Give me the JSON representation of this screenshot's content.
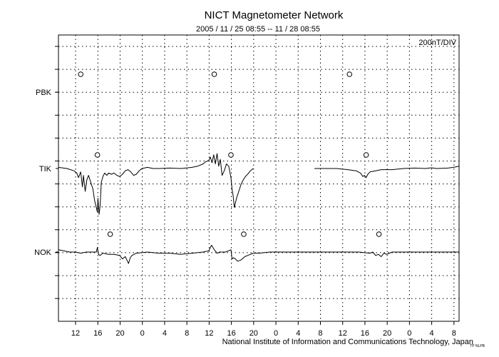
{
  "chart_data": {
    "type": "line",
    "title": "NICT Magnetometer Network",
    "subtitle": "2005 / 11 / 25   08:55 -- 11 / 28   08:55",
    "scale_label": "200nT/DIV",
    "credit": "National Institute of Information and Communications Technology, Japan",
    "small_mark": "TP NLPB",
    "grid": true,
    "x_range_hours": [
      0,
      72
    ],
    "x_tick_labels": [
      "12",
      "16",
      "20",
      "0",
      "4",
      "8",
      "12",
      "16",
      "20",
      "0",
      "4",
      "8",
      "12",
      "16",
      "20",
      "0",
      "4",
      "8"
    ],
    "x_tick_hours": [
      3.08,
      7.08,
      11.08,
      15.08,
      19.08,
      23.08,
      27.08,
      31.08,
      35.08,
      39.08,
      43.08,
      47.08,
      51.08,
      55.08,
      59.08,
      63.08,
      67.08,
      71.08
    ],
    "stations": [
      {
        "name": "PBK",
        "circle_hours": [
          4.0,
          28.0,
          52.3
        ],
        "x": [],
        "y": []
      },
      {
        "name": "TIK",
        "circle_hours": [
          7.0,
          31.0,
          55.3
        ],
        "x": [
          0,
          1.5,
          2.8,
          3.3,
          3.6,
          4.0,
          4.3,
          4.5,
          4.8,
          5.1,
          5.4,
          5.8,
          6.2,
          6.5,
          6.8,
          7.0,
          7.1,
          7.3,
          7.5,
          7.7,
          8.0,
          8.3,
          8.7,
          9.0,
          9.5,
          10.0,
          10.5,
          11.0,
          11.5,
          12.0,
          12.5,
          13.0,
          13.5,
          14.0,
          14.5,
          15.0,
          16.0,
          17.0,
          18.0,
          20.0,
          22.0,
          24.0,
          25.0,
          26.0,
          26.5,
          27.0,
          27.3,
          27.6,
          27.9,
          28.2,
          28.5,
          28.8,
          29.1,
          29.4,
          29.8,
          30.2,
          30.6,
          31.0,
          31.2,
          31.4,
          31.6,
          32.0,
          32.4,
          32.8,
          33.2,
          33.6,
          34.0,
          34.5,
          35.0,
          44.5,
          46.0,
          48.0,
          50.0,
          52.0,
          53.5,
          54.3,
          54.7,
          55.0,
          55.3,
          55.6,
          56.0,
          57.0,
          58.0,
          60.0,
          62.0,
          64.0,
          66.0,
          67.0,
          68.0,
          70.0,
          71.0,
          72.0
        ],
        "y": [
          0.05,
          0.0,
          -0.1,
          -0.2,
          -0.4,
          -0.15,
          -0.8,
          -0.3,
          -1.0,
          -0.5,
          -0.3,
          -0.6,
          -0.9,
          -1.4,
          -1.7,
          -1.9,
          -1.3,
          -2.0,
          -1.6,
          -0.6,
          -0.35,
          -0.2,
          -0.3,
          -0.2,
          -0.25,
          -0.2,
          -0.3,
          -0.35,
          -0.25,
          -0.1,
          -0.05,
          -0.15,
          -0.3,
          -0.25,
          -0.1,
          0.0,
          0.05,
          0.0,
          0.0,
          0.02,
          0.0,
          0.05,
          0.1,
          0.2,
          0.3,
          0.35,
          0.5,
          0.25,
          0.6,
          0.2,
          0.65,
          0.1,
          0.4,
          -0.3,
          -0.1,
          0.2,
          0.1,
          -0.4,
          -0.9,
          -1.2,
          -1.7,
          -1.3,
          -1.0,
          -0.7,
          -0.5,
          -0.35,
          -0.25,
          -0.1,
          0.0,
          null,
          0.0,
          0.0,
          0.0,
          -0.05,
          -0.1,
          -0.2,
          -0.35,
          -0.3,
          -0.4,
          -0.25,
          -0.15,
          -0.1,
          -0.05,
          -0.05,
          0.0,
          0.02,
          0.0,
          0.03,
          0.0,
          0.02,
          0.05,
          0.1
        ]
      },
      {
        "name": "NOK",
        "circle_hours": [
          9.3,
          33.3,
          57.6
        ],
        "x": [
          0,
          1.0,
          2.0,
          3.0,
          4.0,
          5.0,
          6.0,
          6.8,
          7.0,
          7.2,
          7.5,
          8.0,
          9.0,
          10.0,
          11.0,
          11.5,
          12.0,
          12.3,
          12.6,
          12.9,
          13.2,
          14.0,
          16.0,
          18.0,
          20.0,
          22.0,
          24.0,
          26.0,
          27.0,
          27.5,
          28.0,
          28.5,
          29.0,
          30.0,
          31.0,
          31.2,
          31.5,
          31.8,
          32.2,
          32.8,
          33.5,
          34.0,
          35.0,
          36.0,
          38.0,
          40.0,
          42.0,
          44.0,
          46.0,
          48.0,
          50.0,
          52.0,
          54.0,
          56.0,
          56.5,
          57.0,
          57.5,
          58.0,
          58.5,
          59.0,
          60.0,
          62.0,
          64.0,
          66.0,
          68.0,
          70.0,
          72.0
        ],
        "y": [
          0.1,
          0.05,
          0.0,
          0.0,
          -0.05,
          0.0,
          0.0,
          0.0,
          0.2,
          -0.1,
          -0.15,
          -0.05,
          -0.1,
          -0.1,
          -0.15,
          -0.3,
          -0.2,
          -0.35,
          -0.5,
          -0.25,
          -0.15,
          -0.05,
          0.0,
          -0.05,
          -0.05,
          -0.1,
          -0.05,
          0.0,
          0.05,
          0.3,
          0.1,
          -0.05,
          0.0,
          0.0,
          0.1,
          -0.3,
          -0.25,
          -0.3,
          -0.4,
          -0.35,
          -0.2,
          -0.15,
          -0.05,
          -0.05,
          0.0,
          0.0,
          0.0,
          0.0,
          0.0,
          0.0,
          0.0,
          0.0,
          0.0,
          -0.05,
          0.0,
          -0.15,
          -0.1,
          -0.2,
          -0.05,
          -0.1,
          0.0,
          0.0,
          0.0,
          0.0,
          0.0,
          0.0,
          0.0
        ]
      }
    ]
  }
}
